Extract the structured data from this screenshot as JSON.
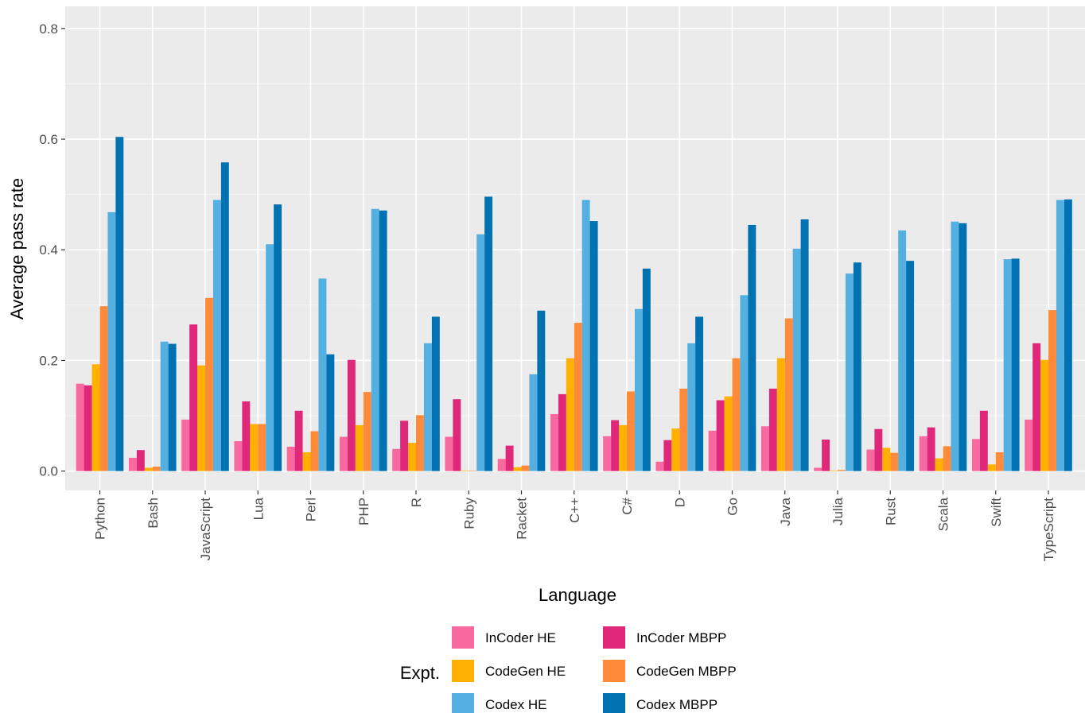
{
  "chart_data": {
    "type": "bar",
    "xlabel": "Language",
    "ylabel": "Average pass rate",
    "ylim": [
      -0.035,
      0.84
    ],
    "yticks": [
      0.0,
      0.2,
      0.4,
      0.6,
      0.8
    ],
    "ytick_labels": [
      "0.0",
      "0.2",
      "0.4",
      "0.6",
      "0.8"
    ],
    "grid": true,
    "legend": {
      "title": "Expt.",
      "placement": "bottom"
    },
    "categories": [
      "Python",
      "Bash",
      "JavaScript",
      "Lua",
      "Perl",
      "PHP",
      "R",
      "Ruby",
      "Racket",
      "C++",
      "C#",
      "D",
      "Go",
      "Java",
      "Julia",
      "Rust",
      "Scala",
      "Swift",
      "TypeScript"
    ],
    "series": [
      {
        "name": "InCoder HE",
        "color": "#F7699F",
        "values": [
          0.158,
          0.024,
          0.093,
          0.054,
          0.044,
          0.062,
          0.04,
          0.062,
          0.022,
          0.103,
          0.063,
          0.017,
          0.073,
          0.081,
          0.006,
          0.039,
          0.063,
          0.058,
          0.093
        ]
      },
      {
        "name": "InCoder MBPP",
        "color": "#E0287A",
        "values": [
          0.155,
          0.038,
          0.265,
          0.126,
          0.109,
          0.201,
          0.091,
          0.13,
          0.046,
          0.139,
          0.092,
          0.056,
          0.128,
          0.149,
          0.057,
          0.076,
          0.079,
          0.109,
          0.231
        ]
      },
      {
        "name": "CodeGen HE",
        "color": "#FFB000",
        "values": [
          0.193,
          0.006,
          0.191,
          0.085,
          0.034,
          0.083,
          0.051,
          0.001,
          0.007,
          0.204,
          0.083,
          0.077,
          0.135,
          0.204,
          0.001,
          0.042,
          0.023,
          0.012,
          0.201
        ]
      },
      {
        "name": "CodeGen MBPP",
        "color": "#FE8A3A",
        "values": [
          0.298,
          0.008,
          0.313,
          0.085,
          0.072,
          0.143,
          0.101,
          0.001,
          0.01,
          0.268,
          0.144,
          0.149,
          0.204,
          0.276,
          0.002,
          0.033,
          0.045,
          0.034,
          0.291
        ]
      },
      {
        "name": "Codex HE",
        "color": "#55B0E2",
        "values": [
          0.468,
          0.234,
          0.49,
          0.41,
          0.348,
          0.474,
          0.231,
          0.428,
          0.175,
          0.49,
          0.293,
          0.231,
          0.318,
          0.402,
          0.357,
          0.435,
          0.451,
          0.383,
          0.49
        ]
      },
      {
        "name": "Codex MBPP",
        "color": "#0072B2",
        "values": [
          0.604,
          0.23,
          0.558,
          0.482,
          0.211,
          0.471,
          0.279,
          0.496,
          0.29,
          0.452,
          0.366,
          0.279,
          0.445,
          0.455,
          0.377,
          0.38,
          0.448,
          0.384,
          0.491
        ]
      }
    ]
  }
}
